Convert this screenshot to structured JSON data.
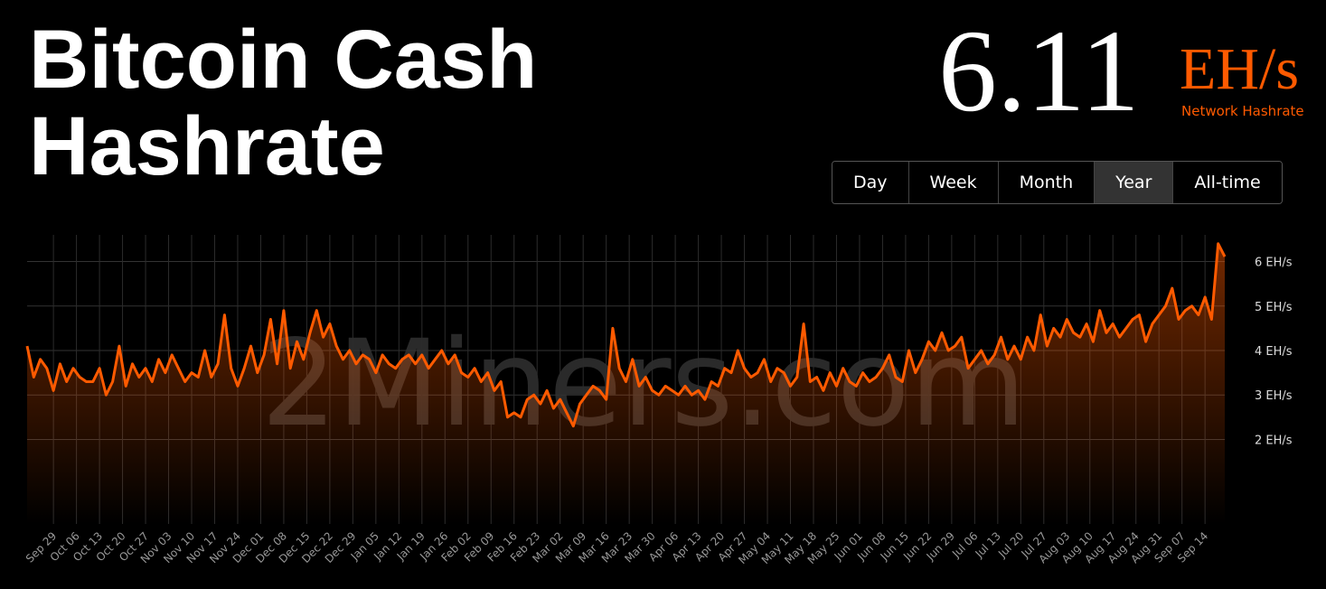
{
  "header": {
    "title": [
      "Bitcoin Cash",
      "Hashrate"
    ]
  },
  "hashrate": {
    "value": 6.11,
    "unit": "EH/s",
    "label": "Network Hashrate"
  },
  "buttons": [
    {
      "label": "Day"
    },
    {
      "label": "Week"
    },
    {
      "label": "Month"
    },
    {
      "label": "Year",
      "active": true
    },
    {
      "label": "All-time"
    }
  ],
  "watermark": "2Miners.com",
  "chart_data": {
    "type": "area",
    "color": "#ff5a00",
    "grid": true,
    "ylim": [
      0.1,
      6.6
    ],
    "yticks": [
      {
        "value": 2,
        "label": "2 EH/s"
      },
      {
        "value": 3,
        "label": "3 EH/s"
      },
      {
        "value": 4,
        "label": "4 EH/s"
      },
      {
        "value": 5,
        "label": "5 EH/s"
      },
      {
        "value": 6,
        "label": "6 EH/s"
      }
    ],
    "xlim": [
      0,
      364
    ],
    "xticks": [
      {
        "value": 8,
        "label": "Sep 29"
      },
      {
        "value": 15,
        "label": "Oct 06"
      },
      {
        "value": 22,
        "label": "Oct 13"
      },
      {
        "value": 29,
        "label": "Oct 20"
      },
      {
        "value": 36,
        "label": "Oct 27"
      },
      {
        "value": 43,
        "label": "Nov 03"
      },
      {
        "value": 50,
        "label": "Nov 10"
      },
      {
        "value": 57,
        "label": "Nov 17"
      },
      {
        "value": 64,
        "label": "Nov 24"
      },
      {
        "value": 71,
        "label": "Dec 01"
      },
      {
        "value": 78,
        "label": "Dec 08"
      },
      {
        "value": 85,
        "label": "Dec 15"
      },
      {
        "value": 92,
        "label": "Dec 22"
      },
      {
        "value": 99,
        "label": "Dec 29"
      },
      {
        "value": 106,
        "label": "Jan 05"
      },
      {
        "value": 113,
        "label": "Jan 12"
      },
      {
        "value": 120,
        "label": "Jan 19"
      },
      {
        "value": 127,
        "label": "Jan 26"
      },
      {
        "value": 134,
        "label": "Feb 02"
      },
      {
        "value": 141,
        "label": "Feb 09"
      },
      {
        "value": 148,
        "label": "Feb 16"
      },
      {
        "value": 155,
        "label": "Feb 23"
      },
      {
        "value": 162,
        "label": "Mar 02"
      },
      {
        "value": 169,
        "label": "Mar 09"
      },
      {
        "value": 176,
        "label": "Mar 16"
      },
      {
        "value": 183,
        "label": "Mar 23"
      },
      {
        "value": 190,
        "label": "Mar 30"
      },
      {
        "value": 197,
        "label": "Apr 06"
      },
      {
        "value": 204,
        "label": "Apr 13"
      },
      {
        "value": 211,
        "label": "Apr 20"
      },
      {
        "value": 218,
        "label": "Apr 27"
      },
      {
        "value": 225,
        "label": "May 04"
      },
      {
        "value": 232,
        "label": "May 11"
      },
      {
        "value": 239,
        "label": "May 18"
      },
      {
        "value": 246,
        "label": "May 25"
      },
      {
        "value": 253,
        "label": "Jun 01"
      },
      {
        "value": 260,
        "label": "Jun 08"
      },
      {
        "value": 267,
        "label": "Jun 15"
      },
      {
        "value": 274,
        "label": "Jun 22"
      },
      {
        "value": 281,
        "label": "Jun 29"
      },
      {
        "value": 288,
        "label": "Jul 06"
      },
      {
        "value": 295,
        "label": "Jul 13"
      },
      {
        "value": 302,
        "label": "Jul 20"
      },
      {
        "value": 309,
        "label": "Jul 27"
      },
      {
        "value": 316,
        "label": "Aug 03"
      },
      {
        "value": 323,
        "label": "Aug 10"
      },
      {
        "value": 330,
        "label": "Aug 17"
      },
      {
        "value": 337,
        "label": "Aug 24"
      },
      {
        "value": 344,
        "label": "Aug 31"
      },
      {
        "value": 351,
        "label": "Sep 07"
      },
      {
        "value": 358,
        "label": "Sep 14"
      }
    ],
    "x": [
      0,
      2,
      4,
      6,
      8,
      10,
      12,
      14,
      16,
      18,
      20,
      22,
      24,
      26,
      28,
      30,
      32,
      34,
      36,
      38,
      40,
      42,
      44,
      46,
      48,
      50,
      52,
      54,
      56,
      58,
      60,
      62,
      64,
      66,
      68,
      70,
      72,
      74,
      76,
      78,
      80,
      82,
      84,
      86,
      88,
      90,
      92,
      94,
      96,
      98,
      100,
      102,
      104,
      106,
      108,
      110,
      112,
      114,
      116,
      118,
      120,
      122,
      124,
      126,
      128,
      130,
      132,
      134,
      136,
      138,
      140,
      142,
      144,
      146,
      148,
      150,
      152,
      154,
      156,
      158,
      160,
      162,
      164,
      166,
      168,
      170,
      172,
      174,
      176,
      178,
      180,
      182,
      184,
      186,
      188,
      190,
      192,
      194,
      196,
      198,
      200,
      202,
      204,
      206,
      208,
      210,
      212,
      214,
      216,
      218,
      220,
      222,
      224,
      226,
      228,
      230,
      232,
      234,
      236,
      238,
      240,
      242,
      244,
      246,
      248,
      250,
      252,
      254,
      256,
      258,
      260,
      262,
      264,
      266,
      268,
      270,
      272,
      274,
      276,
      278,
      280,
      282,
      284,
      286,
      288,
      290,
      292,
      294,
      296,
      298,
      300,
      302,
      304,
      306,
      308,
      310,
      312,
      314,
      316,
      318,
      320,
      322,
      324,
      326,
      328,
      330,
      332,
      334,
      336,
      338,
      340,
      342,
      344,
      346,
      348,
      350,
      352,
      354,
      356,
      358,
      360,
      362,
      364
    ],
    "values": [
      4.1,
      3.4,
      3.8,
      3.6,
      3.1,
      3.7,
      3.3,
      3.6,
      3.4,
      3.3,
      3.3,
      3.6,
      3.0,
      3.3,
      4.1,
      3.2,
      3.7,
      3.4,
      3.6,
      3.3,
      3.8,
      3.5,
      3.9,
      3.6,
      3.3,
      3.5,
      3.4,
      4.0,
      3.4,
      3.7,
      4.8,
      3.6,
      3.2,
      3.6,
      4.1,
      3.5,
      3.9,
      4.7,
      3.7,
      4.9,
      3.6,
      4.2,
      3.8,
      4.4,
      4.9,
      4.3,
      4.6,
      4.1,
      3.8,
      4.0,
      3.7,
      3.9,
      3.8,
      3.5,
      3.9,
      3.7,
      3.6,
      3.8,
      3.9,
      3.7,
      3.9,
      3.6,
      3.8,
      4.0,
      3.7,
      3.9,
      3.5,
      3.4,
      3.6,
      3.3,
      3.5,
      3.1,
      3.3,
      2.5,
      2.6,
      2.5,
      2.9,
      3.0,
      2.8,
      3.1,
      2.7,
      2.9,
      2.6,
      2.3,
      2.8,
      3.0,
      3.2,
      3.1,
      2.9,
      4.5,
      3.6,
      3.3,
      3.8,
      3.2,
      3.4,
      3.1,
      3.0,
      3.2,
      3.1,
      3.0,
      3.2,
      3.0,
      3.1,
      2.9,
      3.3,
      3.2,
      3.6,
      3.5,
      4.0,
      3.6,
      3.4,
      3.5,
      3.8,
      3.3,
      3.6,
      3.5,
      3.2,
      3.4,
      4.6,
      3.3,
      3.4,
      3.1,
      3.5,
      3.2,
      3.6,
      3.3,
      3.2,
      3.5,
      3.3,
      3.4,
      3.6,
      3.9,
      3.4,
      3.3,
      4.0,
      3.5,
      3.8,
      4.2,
      4.0,
      4.4,
      4.0,
      4.1,
      4.3,
      3.6,
      3.8,
      4.0,
      3.7,
      3.9,
      4.3,
      3.8,
      4.1,
      3.8,
      4.3,
      4.0,
      4.8,
      4.1,
      4.5,
      4.3,
      4.7,
      4.4,
      4.3,
      4.6,
      4.2,
      4.9,
      4.4,
      4.6,
      4.3,
      4.5,
      4.7,
      4.8,
      4.2,
      4.6,
      4.8,
      5.0,
      5.4,
      4.7,
      4.9,
      5.0,
      4.8,
      5.2,
      4.7,
      6.4,
      6.11
    ]
  }
}
